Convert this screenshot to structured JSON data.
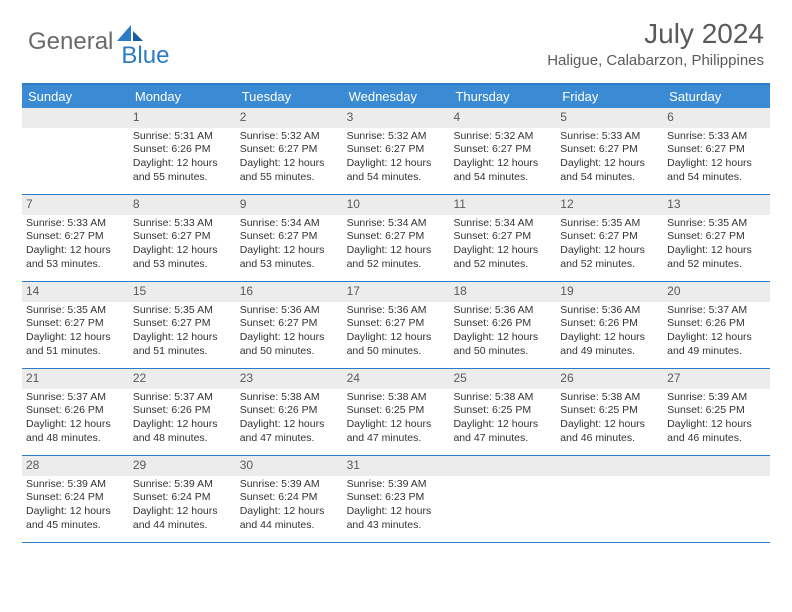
{
  "logo": {
    "text1": "General",
    "text2": "Blue",
    "color1": "#6a6a6a",
    "color2": "#2b7cc4"
  },
  "title": "July 2024",
  "location": "Haligue, Calabarzon, Philippines",
  "colors": {
    "header_bg": "#3b8bd4",
    "border": "#2b7cc4",
    "day_num_bg": "#ececec",
    "text": "#333333",
    "muted": "#5a5a5a"
  },
  "day_names": [
    "Sunday",
    "Monday",
    "Tuesday",
    "Wednesday",
    "Thursday",
    "Friday",
    "Saturday"
  ],
  "weeks": [
    [
      {
        "n": "",
        "sr": "",
        "ss": "",
        "dl": ""
      },
      {
        "n": "1",
        "sr": "5:31 AM",
        "ss": "6:26 PM",
        "dl": "12 hours and 55 minutes."
      },
      {
        "n": "2",
        "sr": "5:32 AM",
        "ss": "6:27 PM",
        "dl": "12 hours and 55 minutes."
      },
      {
        "n": "3",
        "sr": "5:32 AM",
        "ss": "6:27 PM",
        "dl": "12 hours and 54 minutes."
      },
      {
        "n": "4",
        "sr": "5:32 AM",
        "ss": "6:27 PM",
        "dl": "12 hours and 54 minutes."
      },
      {
        "n": "5",
        "sr": "5:33 AM",
        "ss": "6:27 PM",
        "dl": "12 hours and 54 minutes."
      },
      {
        "n": "6",
        "sr": "5:33 AM",
        "ss": "6:27 PM",
        "dl": "12 hours and 54 minutes."
      }
    ],
    [
      {
        "n": "7",
        "sr": "5:33 AM",
        "ss": "6:27 PM",
        "dl": "12 hours and 53 minutes."
      },
      {
        "n": "8",
        "sr": "5:33 AM",
        "ss": "6:27 PM",
        "dl": "12 hours and 53 minutes."
      },
      {
        "n": "9",
        "sr": "5:34 AM",
        "ss": "6:27 PM",
        "dl": "12 hours and 53 minutes."
      },
      {
        "n": "10",
        "sr": "5:34 AM",
        "ss": "6:27 PM",
        "dl": "12 hours and 52 minutes."
      },
      {
        "n": "11",
        "sr": "5:34 AM",
        "ss": "6:27 PM",
        "dl": "12 hours and 52 minutes."
      },
      {
        "n": "12",
        "sr": "5:35 AM",
        "ss": "6:27 PM",
        "dl": "12 hours and 52 minutes."
      },
      {
        "n": "13",
        "sr": "5:35 AM",
        "ss": "6:27 PM",
        "dl": "12 hours and 52 minutes."
      }
    ],
    [
      {
        "n": "14",
        "sr": "5:35 AM",
        "ss": "6:27 PM",
        "dl": "12 hours and 51 minutes."
      },
      {
        "n": "15",
        "sr": "5:35 AM",
        "ss": "6:27 PM",
        "dl": "12 hours and 51 minutes."
      },
      {
        "n": "16",
        "sr": "5:36 AM",
        "ss": "6:27 PM",
        "dl": "12 hours and 50 minutes."
      },
      {
        "n": "17",
        "sr": "5:36 AM",
        "ss": "6:27 PM",
        "dl": "12 hours and 50 minutes."
      },
      {
        "n": "18",
        "sr": "5:36 AM",
        "ss": "6:26 PM",
        "dl": "12 hours and 50 minutes."
      },
      {
        "n": "19",
        "sr": "5:36 AM",
        "ss": "6:26 PM",
        "dl": "12 hours and 49 minutes."
      },
      {
        "n": "20",
        "sr": "5:37 AM",
        "ss": "6:26 PM",
        "dl": "12 hours and 49 minutes."
      }
    ],
    [
      {
        "n": "21",
        "sr": "5:37 AM",
        "ss": "6:26 PM",
        "dl": "12 hours and 48 minutes."
      },
      {
        "n": "22",
        "sr": "5:37 AM",
        "ss": "6:26 PM",
        "dl": "12 hours and 48 minutes."
      },
      {
        "n": "23",
        "sr": "5:38 AM",
        "ss": "6:26 PM",
        "dl": "12 hours and 47 minutes."
      },
      {
        "n": "24",
        "sr": "5:38 AM",
        "ss": "6:25 PM",
        "dl": "12 hours and 47 minutes."
      },
      {
        "n": "25",
        "sr": "5:38 AM",
        "ss": "6:25 PM",
        "dl": "12 hours and 47 minutes."
      },
      {
        "n": "26",
        "sr": "5:38 AM",
        "ss": "6:25 PM",
        "dl": "12 hours and 46 minutes."
      },
      {
        "n": "27",
        "sr": "5:39 AM",
        "ss": "6:25 PM",
        "dl": "12 hours and 46 minutes."
      }
    ],
    [
      {
        "n": "28",
        "sr": "5:39 AM",
        "ss": "6:24 PM",
        "dl": "12 hours and 45 minutes."
      },
      {
        "n": "29",
        "sr": "5:39 AM",
        "ss": "6:24 PM",
        "dl": "12 hours and 44 minutes."
      },
      {
        "n": "30",
        "sr": "5:39 AM",
        "ss": "6:24 PM",
        "dl": "12 hours and 44 minutes."
      },
      {
        "n": "31",
        "sr": "5:39 AM",
        "ss": "6:23 PM",
        "dl": "12 hours and 43 minutes."
      },
      {
        "n": "",
        "sr": "",
        "ss": "",
        "dl": ""
      },
      {
        "n": "",
        "sr": "",
        "ss": "",
        "dl": ""
      },
      {
        "n": "",
        "sr": "",
        "ss": "",
        "dl": ""
      }
    ]
  ],
  "labels": {
    "sunrise": "Sunrise:",
    "sunset": "Sunset:",
    "daylight": "Daylight:"
  }
}
